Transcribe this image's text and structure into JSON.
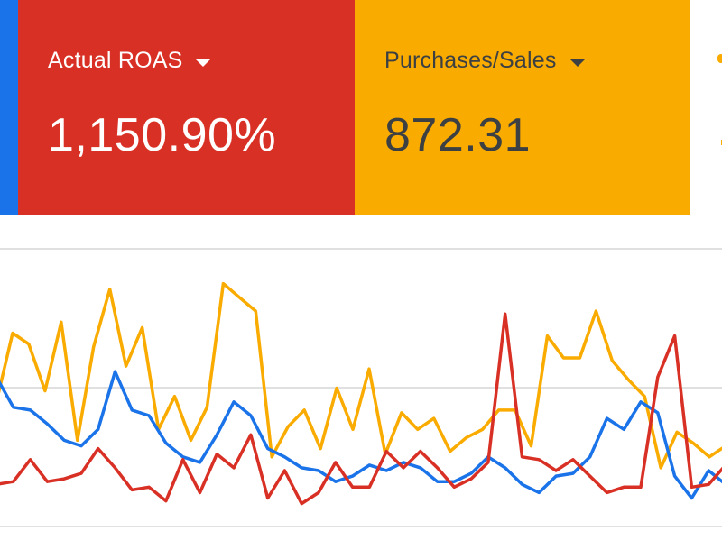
{
  "scorecards": [
    {
      "id": "blue",
      "color": "#1a73e8"
    },
    {
      "id": "red",
      "label": "Actual ROAS",
      "value": "1,150.90%",
      "color": "#d93025"
    },
    {
      "id": "yellow",
      "label": "Purchases/Sales",
      "value": "872.31",
      "color": "#f9ab00"
    },
    {
      "id": "white",
      "color": "#ffffff"
    }
  ],
  "icons": {
    "dropdown": "caret-down-icon"
  },
  "chart_data": {
    "type": "line",
    "grid": true,
    "ylim": [
      0,
      100
    ],
    "series": [
      {
        "color": "#f9ab00",
        "values": [
          45,
          70,
          66,
          49,
          74,
          31,
          65,
          86,
          58,
          72,
          35,
          47,
          31,
          43,
          88,
          83,
          78,
          25,
          36,
          42,
          28,
          50,
          35,
          57,
          26,
          41,
          35,
          39,
          27,
          32,
          35,
          42,
          42,
          29,
          69,
          61,
          61,
          78,
          60,
          53,
          47,
          21,
          34,
          30,
          25,
          29
        ]
      },
      {
        "color": "#1a73e8",
        "values": [
          54,
          43,
          42,
          37,
          31,
          29,
          35,
          56,
          42,
          40,
          30,
          25,
          23,
          33,
          45,
          40,
          28,
          25,
          21,
          20,
          16,
          18,
          22,
          20,
          23,
          21,
          16,
          16,
          19,
          25,
          21,
          15,
          12,
          18,
          19,
          25,
          39,
          35,
          45,
          41,
          18,
          10,
          20,
          15
        ]
      },
      {
        "color": "#d93025",
        "values": [
          15,
          16,
          24,
          16,
          17,
          19,
          28,
          21,
          13,
          14,
          9,
          24,
          12,
          26,
          21,
          33,
          10,
          20,
          8,
          12,
          23,
          14,
          14,
          27,
          21,
          27,
          21,
          14,
          17,
          23,
          77,
          25,
          24,
          20,
          24,
          18,
          12,
          14,
          14,
          54,
          69,
          14,
          15,
          22
        ]
      }
    ]
  }
}
